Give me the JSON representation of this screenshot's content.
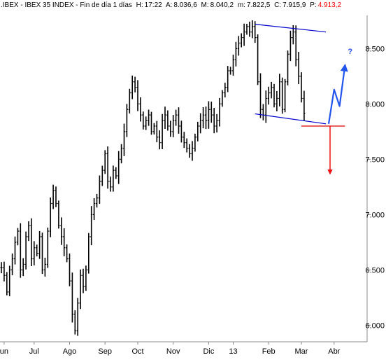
{
  "header": {
    "symbol": ".IBEX",
    "name": "IBEX 35 INDEX",
    "period": "Fin de día 1 días",
    "h_label": "H:",
    "h_value": "17:22",
    "a_label": "A:",
    "a_value": "8.036,6",
    "m_label": "M:",
    "m_value": "8.040,2",
    "mn_label": "m:",
    "mn_value": "7.822,5",
    "c_label": "C:",
    "c_value": "7.915,9",
    "p_label": "P:",
    "p_value": "4.913,2"
  },
  "colors": {
    "background": "#ffffff",
    "bars": "#000000",
    "channel": "#0000cc",
    "blue_arrow": "#2255ee",
    "red_arrow": "#ee1111",
    "support": "#dd0000",
    "grid_tick": "#888888",
    "p_value": "#ff0000"
  },
  "chart_data": {
    "type": "ohlc",
    "x_ticks": [
      "un",
      "Jul",
      "Ago",
      "Sep",
      "Oct",
      "Nov",
      "Dic",
      "13",
      "Feb",
      "Mar",
      "Abr"
    ],
    "y_ticks": [
      "6.000",
      "6.500",
      "7.000",
      "7.500",
      "8.000",
      "8.500"
    ],
    "y_tick_values": [
      6000,
      6500,
      7000,
      7500,
      8000,
      8500
    ],
    "ylim": [
      5850,
      8800
    ],
    "series": [
      {
        "type": "ohlc",
        "values": [
          6520,
          6450,
          6300,
          6500,
          6600,
          6750,
          6850,
          6500,
          6550,
          6800,
          6900,
          6600,
          6700,
          6650,
          6800,
          6500,
          6550,
          6850,
          7100,
          7220,
          7100,
          6900,
          6800,
          6700,
          6600,
          6400,
          6100,
          5950,
          6200,
          6450,
          6350,
          6500,
          6800,
          7000,
          7100,
          7150,
          7300,
          7400,
          7550,
          7300,
          7250,
          7400,
          7350,
          7500,
          7600,
          7750,
          7950,
          8100,
          8200,
          8150,
          8000,
          7900,
          7800,
          7850,
          7900,
          7750,
          7800,
          7700,
          7650,
          7850,
          7900,
          7800,
          7750,
          7850,
          7900,
          7800,
          7700,
          7650,
          7600,
          7550,
          7600,
          7700,
          7800,
          7850,
          7900,
          7850,
          7950,
          7900,
          7800,
          7850,
          8000,
          8100,
          8150,
          8300,
          8300,
          8400,
          8500,
          8550,
          8600,
          8650,
          8700,
          8650,
          8700,
          8600,
          8200,
          7950,
          7900,
          8050,
          8100,
          8150,
          8000,
          8050,
          8200,
          7950,
          8200,
          8450,
          8600,
          8650,
          8400,
          8250,
          8050,
          7915
        ]
      }
    ],
    "annotations": [
      {
        "type": "channel",
        "from": {
          "x": 93,
          "y": 8720
        },
        "to": {
          "x": 119,
          "y": 8650
        }
      },
      {
        "type": "channel",
        "from": {
          "x": 93,
          "y": 7910
        },
        "to": {
          "x": 119,
          "y": 7820
        }
      },
      {
        "type": "support_line",
        "y": 7800,
        "x_from": 110,
        "x_to": 126
      },
      {
        "type": "blue_path",
        "points": [
          [
            120,
            7820
          ],
          [
            122,
            8130
          ],
          [
            124,
            7980
          ],
          [
            126,
            8350
          ]
        ],
        "label": "?"
      },
      {
        "type": "red_arrow",
        "from": {
          "x": 120,
          "y": 7800
        },
        "to": {
          "x": 120,
          "y": 7370
        }
      }
    ],
    "legend": "none",
    "grid": false
  }
}
